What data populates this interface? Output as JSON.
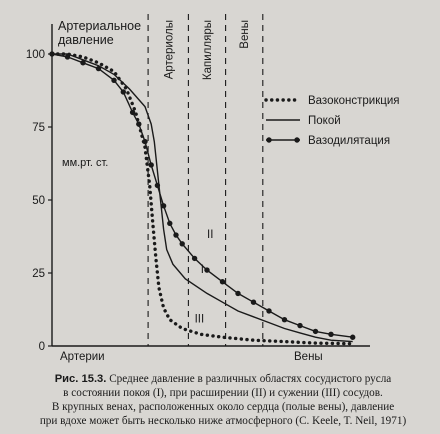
{
  "chart_data": {
    "type": "line",
    "ylabel_line1": "Артериальное",
    "ylabel_line2": "давление",
    "unit_label": "мм.рт. ст.",
    "yticks": [
      0,
      25,
      50,
      75,
      100
    ],
    "ylim": [
      0,
      100
    ],
    "xlim": [
      0,
      100
    ],
    "x_start_label": "Артерии",
    "x_end_label": "Вены",
    "region_labels": [
      "Артериолы",
      "Капилляры",
      "Вены"
    ],
    "region_boundaries": [
      31,
      44,
      56,
      68
    ],
    "roman_labels": [
      {
        "text": "II",
        "x": 50,
        "y": 37
      },
      {
        "text": "I",
        "x": 48,
        "y": 25
      },
      {
        "text": "III",
        "x": 46,
        "y": 8
      }
    ],
    "legend_position": "right",
    "series": [
      {
        "name": "Вазоконстрикция",
        "style": "dotted",
        "points": [
          [
            0,
            100
          ],
          [
            5,
            100
          ],
          [
            10,
            99
          ],
          [
            15,
            97
          ],
          [
            20,
            94
          ],
          [
            24,
            88
          ],
          [
            27,
            80
          ],
          [
            30,
            68
          ],
          [
            31.5,
            55
          ],
          [
            32.5,
            42
          ],
          [
            33.5,
            30
          ],
          [
            34.5,
            20
          ],
          [
            36,
            13
          ],
          [
            38,
            9
          ],
          [
            42,
            6
          ],
          [
            48,
            4
          ],
          [
            55,
            3
          ],
          [
            65,
            2
          ],
          [
            75,
            1.5
          ],
          [
            85,
            1
          ],
          [
            97,
            0.8
          ]
        ]
      },
      {
        "name": "Покой",
        "style": "solid",
        "points": [
          [
            0,
            100
          ],
          [
            5,
            100
          ],
          [
            10,
            98
          ],
          [
            15,
            96
          ],
          [
            20,
            93
          ],
          [
            25,
            88
          ],
          [
            30,
            82
          ],
          [
            32,
            76
          ],
          [
            33,
            70
          ],
          [
            34,
            60
          ],
          [
            35,
            50
          ],
          [
            36,
            40
          ],
          [
            37,
            33
          ],
          [
            39,
            28
          ],
          [
            43,
            23
          ],
          [
            50,
            18
          ],
          [
            55,
            15
          ],
          [
            60,
            12
          ],
          [
            65,
            10
          ],
          [
            70,
            8
          ],
          [
            75,
            6
          ],
          [
            80,
            4.5
          ],
          [
            85,
            3
          ],
          [
            90,
            2
          ],
          [
            97,
            1.5
          ]
        ]
      },
      {
        "name": "Вазодилятация",
        "style": "dots-line",
        "points": [
          [
            0,
            100
          ],
          [
            5,
            99
          ],
          [
            10,
            97
          ],
          [
            15,
            95
          ],
          [
            20,
            91
          ],
          [
            23,
            87
          ],
          [
            26,
            80
          ],
          [
            28,
            76
          ],
          [
            30,
            70
          ],
          [
            32,
            62
          ],
          [
            34,
            55
          ],
          [
            36,
            48
          ],
          [
            38,
            42
          ],
          [
            40,
            38
          ],
          [
            42,
            35
          ],
          [
            46,
            30
          ],
          [
            50,
            26
          ],
          [
            55,
            22
          ],
          [
            60,
            18
          ],
          [
            65,
            15
          ],
          [
            70,
            12
          ],
          [
            75,
            9
          ],
          [
            80,
            7
          ],
          [
            85,
            5
          ],
          [
            90,
            4
          ],
          [
            97,
            3
          ]
        ]
      }
    ]
  },
  "caption": {
    "lead": "Рис. 15.3.",
    "line1": " Среднее давление в различных областях сосудистого русла",
    "line2": "в состоянии покоя (I), при расширении (II) и сужении (III) сосудов.",
    "line3": "В крупных венах, расположенных около сердца (полые вены), давление",
    "line4": "при вдохе может быть несколько ниже атмосферного (C. Keele, T. Neil, 1971)"
  }
}
